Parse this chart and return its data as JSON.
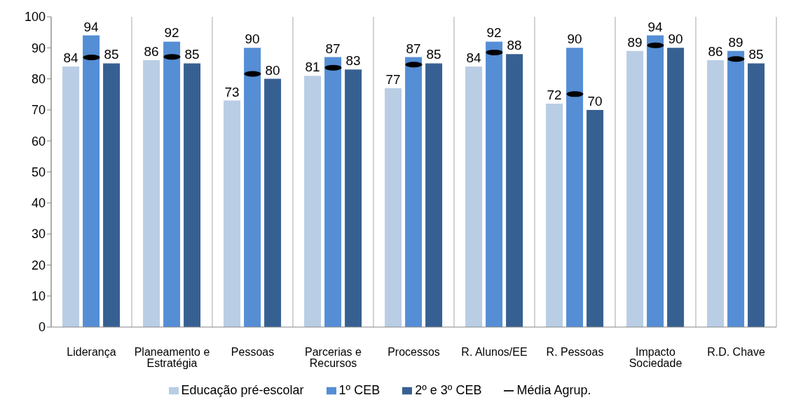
{
  "chart_data": {
    "type": "bar",
    "categories": [
      "Liderança",
      "Planeamento e Estratégia",
      "Pessoas",
      "Parcerias e Recursos",
      "Processos",
      "R. Alunos/EE",
      "R. Pessoas",
      "Impacto Sociedade",
      "R.D. Chave"
    ],
    "series": [
      {
        "name": "Educação pré-escolar",
        "color": "#b9cde5",
        "values": [
          84,
          86,
          73,
          81,
          77,
          84,
          72,
          89,
          86
        ],
        "value_labels": [
          "84",
          "86",
          "73",
          "81",
          "77",
          "84",
          "72",
          "89",
          "86"
        ]
      },
      {
        "name": "1º CEB",
        "color": "#558ed5",
        "values": [
          94,
          92,
          90,
          87,
          87,
          92,
          90,
          94,
          89
        ],
        "value_labels": [
          "94",
          "92",
          "90",
          "87",
          "87",
          "92",
          "90",
          "94",
          "89"
        ]
      },
      {
        "name": "2º e 3º CEB",
        "color": "#376092",
        "values": [
          85,
          85,
          80,
          83,
          85,
          88,
          70,
          90,
          85
        ],
        "value_labels": [
          "85",
          "85",
          "80",
          "83",
          "85",
          "88",
          "70",
          "90",
          "85"
        ]
      },
      {
        "name": "Média Agrup.",
        "type": "scatter",
        "color": "#000000",
        "values": [
          86.9,
          87.1,
          81.6,
          83.6,
          84.6,
          88.5,
          75.1,
          90.8,
          86.4
        ]
      }
    ],
    "ylim": [
      0,
      100
    ],
    "yticks": [
      0,
      10,
      20,
      30,
      40,
      50,
      60,
      70,
      80,
      90,
      100
    ],
    "grid": "x",
    "legend": "bottom"
  }
}
